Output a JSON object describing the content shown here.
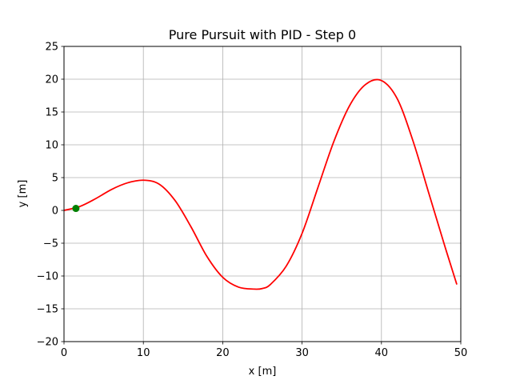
{
  "chart_data": {
    "type": "line",
    "title": "Pure Pursuit with PID - Step 0",
    "xlabel": "x [m]",
    "ylabel": "y [m]",
    "xlim": [
      0,
      50
    ],
    "ylim": [
      -20,
      25
    ],
    "xticks": [
      "0",
      "10",
      "20",
      "30",
      "40",
      "50"
    ],
    "yticks": [
      "−20",
      "−15",
      "−10",
      "−5",
      "0",
      "5",
      "10",
      "15",
      "20",
      "25"
    ],
    "grid": true,
    "series": [
      {
        "color": "#ff0000",
        "x": [
          0,
          2,
          4,
          6,
          8,
          10,
          12,
          14,
          16,
          18,
          20,
          22,
          24,
          25,
          26,
          28,
          30,
          32,
          34,
          36,
          38,
          40,
          42,
          44,
          46,
          48,
          49.5
        ],
        "y": [
          0,
          0.6,
          1.8,
          3.2,
          4.2,
          4.6,
          4.0,
          1.5,
          -2.5,
          -7.0,
          -10.2,
          -11.7,
          -12.0,
          -11.9,
          -11.3,
          -8.5,
          -3.5,
          3.5,
          10.5,
          16.0,
          19.2,
          19.8,
          17.0,
          10.5,
          2.5,
          -5.5,
          -11.3
        ]
      }
    ],
    "marker": {
      "color": "#008000",
      "x": 1.5,
      "y": 0.3
    },
    "colors": {
      "axes": "#000000",
      "grid": "#b0b0b0"
    }
  }
}
